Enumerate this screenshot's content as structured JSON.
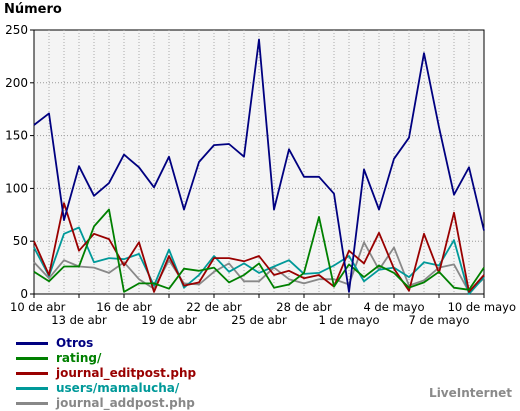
{
  "chart_data": {
    "type": "line",
    "ylabel": "Número",
    "ylim": [
      0,
      250
    ],
    "yticks": [
      0,
      50,
      100,
      150,
      200,
      250
    ],
    "grid": true,
    "legend_position": "bottom-left",
    "categories": [
      "10 de abr",
      "11 de abr",
      "12 de abr",
      "13 de abr",
      "14 de abr",
      "15 de abr",
      "16 de abr",
      "17 de abr",
      "18 de abr",
      "19 de abr",
      "20 de abr",
      "21 de abr",
      "22 de abr",
      "23 de abr",
      "24 de abr",
      "25 de abr",
      "26 de abr",
      "27 de abr",
      "28 de abr",
      "29 de abr",
      "30 de abr",
      "1 de mayo",
      "2 de mayo",
      "3 de mayo",
      "4 de mayo",
      "5 de mayo",
      "6 de mayo",
      "7 de mayo",
      "8 de mayo",
      "9 de mayo",
      "10 de mayo"
    ],
    "xtick_labels": [
      {
        "index": 0,
        "label": "10 de abr",
        "row": 1
      },
      {
        "index": 3,
        "label": "13 de abr",
        "row": 2
      },
      {
        "index": 6,
        "label": "16 de abr",
        "row": 1
      },
      {
        "index": 9,
        "label": "19 de abr",
        "row": 2
      },
      {
        "index": 12,
        "label": "22 de abr",
        "row": 1
      },
      {
        "index": 15,
        "label": "25 de abr",
        "row": 2
      },
      {
        "index": 18,
        "label": "28 de abr",
        "row": 1
      },
      {
        "index": 21,
        "label": "1 de mayo",
        "row": 2
      },
      {
        "index": 24,
        "label": "4 de mayo",
        "row": 1
      },
      {
        "index": 27,
        "label": "7 de mayo",
        "row": 2
      },
      {
        "index": 30,
        "label": "10 de mayo",
        "row": 1
      }
    ],
    "series": [
      {
        "name": "Otros",
        "color": "#000080",
        "values": [
          160,
          171,
          70,
          121,
          93,
          105,
          132,
          120,
          101,
          130,
          80,
          125,
          141,
          142,
          130,
          241,
          80,
          137,
          111,
          111,
          95,
          2,
          118,
          80,
          128,
          148,
          228,
          158,
          94,
          120,
          60
        ]
      },
      {
        "name": "rating/",
        "color": "#008000",
        "values": [
          21,
          12,
          26,
          26,
          64,
          80,
          2,
          10,
          10,
          5,
          24,
          22,
          25,
          11,
          18,
          29,
          6,
          9,
          20,
          73,
          7,
          28,
          16,
          27,
          20,
          6,
          11,
          21,
          6,
          4,
          25
        ]
      },
      {
        "name": "journal_editpost.php",
        "color": "#990000",
        "values": [
          50,
          18,
          86,
          41,
          57,
          52,
          27,
          49,
          2,
          36,
          8,
          11,
          34,
          34,
          31,
          36,
          18,
          22,
          15,
          18,
          7,
          41,
          29,
          58,
          24,
          3,
          57,
          20,
          77,
          2,
          18
        ]
      },
      {
        "name": "users/mamalucha/",
        "color": "#009999",
        "values": [
          44,
          17,
          57,
          63,
          30,
          34,
          33,
          38,
          8,
          42,
          6,
          18,
          36,
          21,
          29,
          20,
          26,
          32,
          19,
          20,
          27,
          36,
          12,
          23,
          25,
          16,
          30,
          27,
          51,
          0,
          16
        ]
      },
      {
        "name": "journal_addpost.php",
        "color": "#888888",
        "values": [
          30,
          15,
          32,
          26,
          25,
          20,
          30,
          14,
          5,
          32,
          10,
          9,
          21,
          29,
          12,
          12,
          25,
          14,
          10,
          14,
          14,
          9,
          49,
          23,
          44,
          8,
          13,
          25,
          28,
          2,
          15
        ]
      }
    ]
  },
  "brand_text": "LiveInternet"
}
